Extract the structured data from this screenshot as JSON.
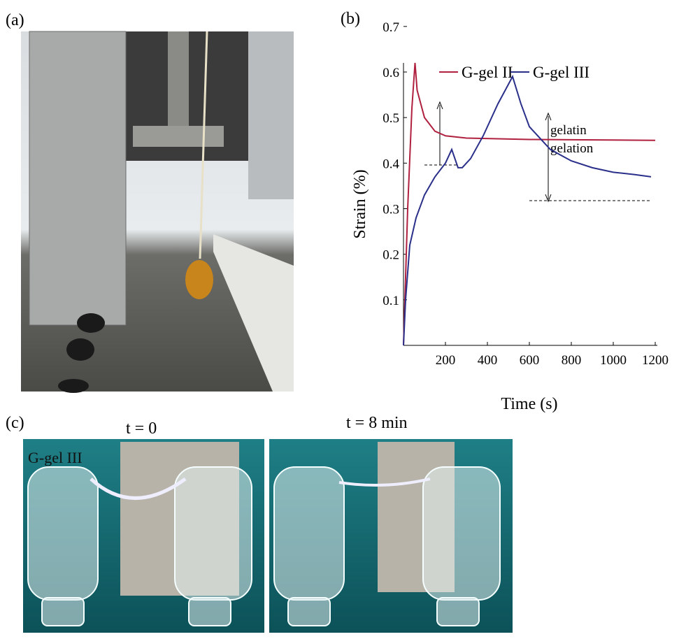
{
  "figure": {
    "panel_a": "(a)",
    "panel_b": "(b)",
    "panel_c": "(c)",
    "time_left": "t = 0",
    "time_right": "t = 8 min",
    "photo_label": "G-gel III"
  },
  "chart_data": {
    "type": "line",
    "xlabel": "Time (s)",
    "ylabel": "Strain (%)",
    "annotation": [
      "gelatin",
      "gelation"
    ],
    "xlim": [
      0,
      1200
    ],
    "xticks": [
      200,
      400,
      600,
      800,
      1000,
      1200
    ],
    "ylim": [
      0,
      0.7
    ],
    "yticks": [
      0.1,
      0.2,
      0.3,
      0.4,
      0.5,
      0.6,
      0.7
    ],
    "series": [
      {
        "name": "G-gel II",
        "color": "#b0203f",
        "x": [
          0,
          20,
          40,
          55,
          65,
          100,
          150,
          200,
          300,
          600,
          1200
        ],
        "values": [
          0,
          0.3,
          0.52,
          0.62,
          0.56,
          0.5,
          0.47,
          0.46,
          0.455,
          0.452,
          0.45
        ]
      },
      {
        "name": "G-gel III",
        "color": "#2a2f8a",
        "x": [
          0,
          10,
          30,
          60,
          100,
          150,
          200,
          230,
          260,
          280,
          320,
          380,
          450,
          520,
          560,
          600,
          700,
          800,
          900,
          1000,
          1100,
          1180
        ],
        "values": [
          0,
          0.1,
          0.22,
          0.28,
          0.33,
          0.37,
          0.4,
          0.43,
          0.39,
          0.39,
          0.41,
          0.46,
          0.53,
          0.59,
          0.53,
          0.48,
          0.43,
          0.405,
          0.39,
          0.38,
          0.375,
          0.37
        ]
      }
    ]
  }
}
